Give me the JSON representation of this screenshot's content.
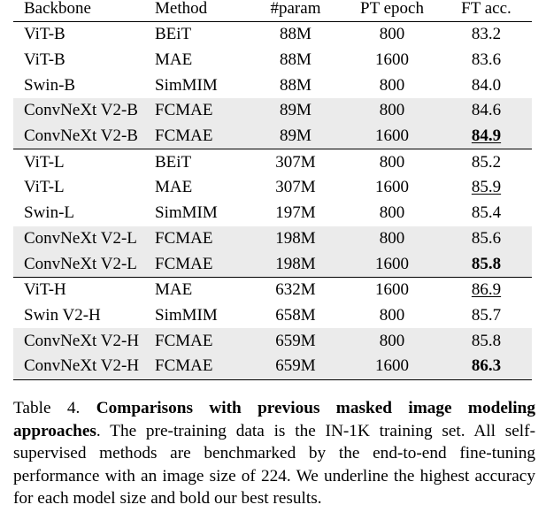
{
  "table": {
    "headers": [
      "Backbone",
      "Method",
      "#param",
      "PT epoch",
      "FT acc."
    ],
    "rows": [
      {
        "backbone": "ViT-B",
        "method": "BEiT",
        "param": "88M",
        "epoch": "800",
        "acc": "83.2",
        "shaded": false,
        "bold": false,
        "underline": false,
        "group_start": true
      },
      {
        "backbone": "ViT-B",
        "method": "MAE",
        "param": "88M",
        "epoch": "1600",
        "acc": "83.6",
        "shaded": false,
        "bold": false,
        "underline": false,
        "group_start": false
      },
      {
        "backbone": "Swin-B",
        "method": "SimMIM",
        "param": "88M",
        "epoch": "800",
        "acc": "84.0",
        "shaded": false,
        "bold": false,
        "underline": false,
        "group_start": false
      },
      {
        "backbone": "ConvNeXt V2-B",
        "method": "FCMAE",
        "param": "89M",
        "epoch": "800",
        "acc": "84.6",
        "shaded": true,
        "bold": false,
        "underline": false,
        "group_start": false
      },
      {
        "backbone": "ConvNeXt V2-B",
        "method": "FCMAE",
        "param": "89M",
        "epoch": "1600",
        "acc": "84.9",
        "shaded": true,
        "bold": true,
        "underline": true,
        "group_start": false
      },
      {
        "backbone": "ViT-L",
        "method": "BEiT",
        "param": "307M",
        "epoch": "800",
        "acc": "85.2",
        "shaded": false,
        "bold": false,
        "underline": false,
        "group_start": true
      },
      {
        "backbone": "ViT-L",
        "method": "MAE",
        "param": "307M",
        "epoch": "1600",
        "acc": "85.9",
        "shaded": false,
        "bold": false,
        "underline": true,
        "group_start": false
      },
      {
        "backbone": "Swin-L",
        "method": "SimMIM",
        "param": "197M",
        "epoch": "800",
        "acc": "85.4",
        "shaded": false,
        "bold": false,
        "underline": false,
        "group_start": false
      },
      {
        "backbone": "ConvNeXt V2-L",
        "method": "FCMAE",
        "param": "198M",
        "epoch": "800",
        "acc": "85.6",
        "shaded": true,
        "bold": false,
        "underline": false,
        "group_start": false
      },
      {
        "backbone": "ConvNeXt V2-L",
        "method": "FCMAE",
        "param": "198M",
        "epoch": "1600",
        "acc": "85.8",
        "shaded": true,
        "bold": true,
        "underline": false,
        "group_start": false
      },
      {
        "backbone": "ViT-H",
        "method": "MAE",
        "param": "632M",
        "epoch": "1600",
        "acc": "86.9",
        "shaded": false,
        "bold": false,
        "underline": true,
        "group_start": true
      },
      {
        "backbone": "Swin V2-H",
        "method": "SimMIM",
        "param": "658M",
        "epoch": "800",
        "acc": "85.7",
        "shaded": false,
        "bold": false,
        "underline": false,
        "group_start": false
      },
      {
        "backbone": "ConvNeXt V2-H",
        "method": "FCMAE",
        "param": "659M",
        "epoch": "800",
        "acc": "85.8",
        "shaded": true,
        "bold": false,
        "underline": false,
        "group_start": false
      },
      {
        "backbone": "ConvNeXt V2-H",
        "method": "FCMAE",
        "param": "659M",
        "epoch": "1600",
        "acc": "86.3",
        "shaded": true,
        "bold": true,
        "underline": false,
        "group_start": false
      }
    ]
  },
  "caption": {
    "label": "Table 4.",
    "bold_text": "Comparisons with previous masked image modeling approaches",
    "rest_text": ". The pre-training data is the IN-1K training set. All self-supervised methods are benchmarked by the end-to-end fine-tuning performance with an image size of 224. We underline the highest accuracy for each model size and bold our best results."
  }
}
